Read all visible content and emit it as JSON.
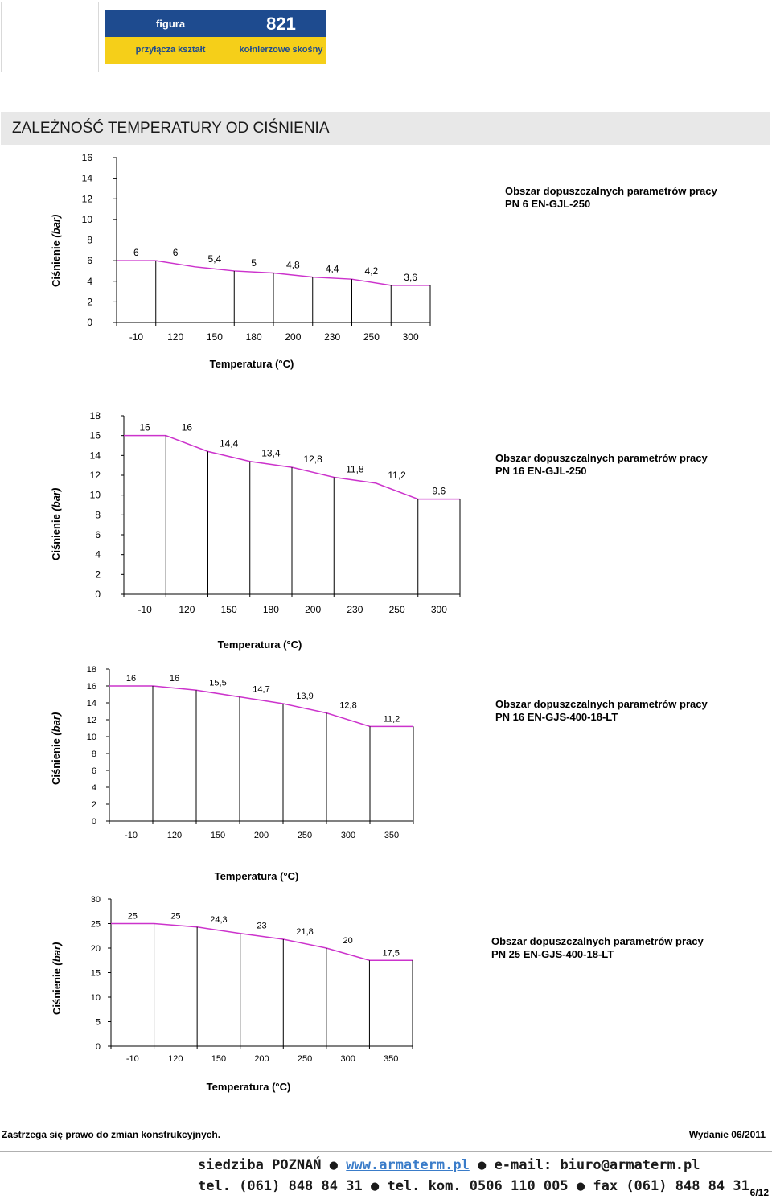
{
  "header": {
    "figura_label": "figura",
    "figure_number": "821",
    "shape_label": "przyłącza kształt",
    "type_label": "kołnierzowe skośny"
  },
  "title": "ZALEŻNOŚĆ TEMPERATURY OD CIŚNIENIA",
  "colors": {
    "line": "#cc33cc",
    "header_blue": "#1e4b8f",
    "header_yellow": "#f5cf19"
  },
  "chart_data": [
    {
      "type": "line",
      "title": "Obszar dopuszczalnych parametrów pracy",
      "subtitle": "PN 6 EN-GJL-250",
      "xlabel": "Temperatura (°C)",
      "ylabel": "Ciśnienie",
      "ylabel_unit": "(bar)",
      "categories": [
        "-10",
        "120",
        "150",
        "180",
        "200",
        "230",
        "250",
        "300"
      ],
      "values": [
        6,
        6,
        5.4,
        5,
        4.8,
        4.4,
        4.2,
        3.6
      ],
      "labels": [
        "6",
        "6",
        "5,4",
        "5",
        "4,8",
        "4,4",
        "4,2",
        "3,6"
      ],
      "yticks": [
        0,
        2,
        4,
        6,
        8,
        10,
        12,
        14,
        16
      ],
      "ylim": [
        0,
        16
      ]
    },
    {
      "type": "line",
      "title": "Obszar dopuszczalnych parametrów pracy",
      "subtitle": "PN 16 EN-GJL-250",
      "xlabel": "Temperatura (°C)",
      "ylabel": "Ciśnienie",
      "ylabel_unit": "(bar)",
      "categories": [
        "-10",
        "120",
        "150",
        "180",
        "200",
        "230",
        "250",
        "300"
      ],
      "values": [
        16,
        16,
        14.4,
        13.4,
        12.8,
        11.8,
        11.2,
        9.6
      ],
      "labels": [
        "16",
        "16",
        "14,4",
        "13,4",
        "12,8",
        "11,8",
        "11,2",
        "9,6"
      ],
      "yticks": [
        0,
        2,
        4,
        6,
        8,
        10,
        12,
        14,
        16,
        18
      ],
      "ylim": [
        0,
        18
      ]
    },
    {
      "type": "line",
      "title": "Obszar dopuszczalnych parametrów pracy",
      "subtitle": "PN 16 EN-GJS-400-18-LT",
      "xlabel": "Temperatura (°C)",
      "ylabel": "Ciśnienie",
      "ylabel_unit": "(bar)",
      "categories": [
        "-10",
        "120",
        "150",
        "200",
        "250",
        "300",
        "350"
      ],
      "values": [
        16,
        16,
        15.5,
        14.7,
        13.9,
        12.8,
        11.2
      ],
      "labels": [
        "16",
        "16",
        "15,5",
        "14,7",
        "13,9",
        "12,8",
        "11,2"
      ],
      "yticks": [
        0,
        2,
        4,
        6,
        8,
        10,
        12,
        14,
        16,
        18
      ],
      "ylim": [
        0,
        18
      ]
    },
    {
      "type": "line",
      "title": "Obszar dopuszczalnych parametrów pracy",
      "subtitle": "PN 25 EN-GJS-400-18-LT",
      "xlabel": "Temperatura (°C)",
      "ylabel": "Ciśnienie",
      "ylabel_unit": "(bar)",
      "categories": [
        "-10",
        "120",
        "150",
        "200",
        "250",
        "300",
        "350"
      ],
      "values": [
        25,
        25,
        24.3,
        23,
        21.8,
        20,
        17.5
      ],
      "labels": [
        "25",
        "25",
        "24,3",
        "23",
        "21,8",
        "20",
        "17,5"
      ],
      "yticks": [
        0,
        5,
        10,
        15,
        20,
        25,
        30
      ],
      "ylim": [
        0,
        30
      ]
    }
  ],
  "footer": {
    "note": "Zastrzega się prawo do zmian konstrukcyjnych.",
    "edition": "Wydanie 06/2011",
    "hq": "siedziba POZNAŃ",
    "website": "www.armaterm.pl",
    "email": "e-mail: biuro@armaterm.pl",
    "tel": "tel. (061) 848 84 31",
    "tel_kom": "tel. kom. 0506 110 005",
    "fax": "fax (061) 848 84 31",
    "page": "6/12"
  }
}
